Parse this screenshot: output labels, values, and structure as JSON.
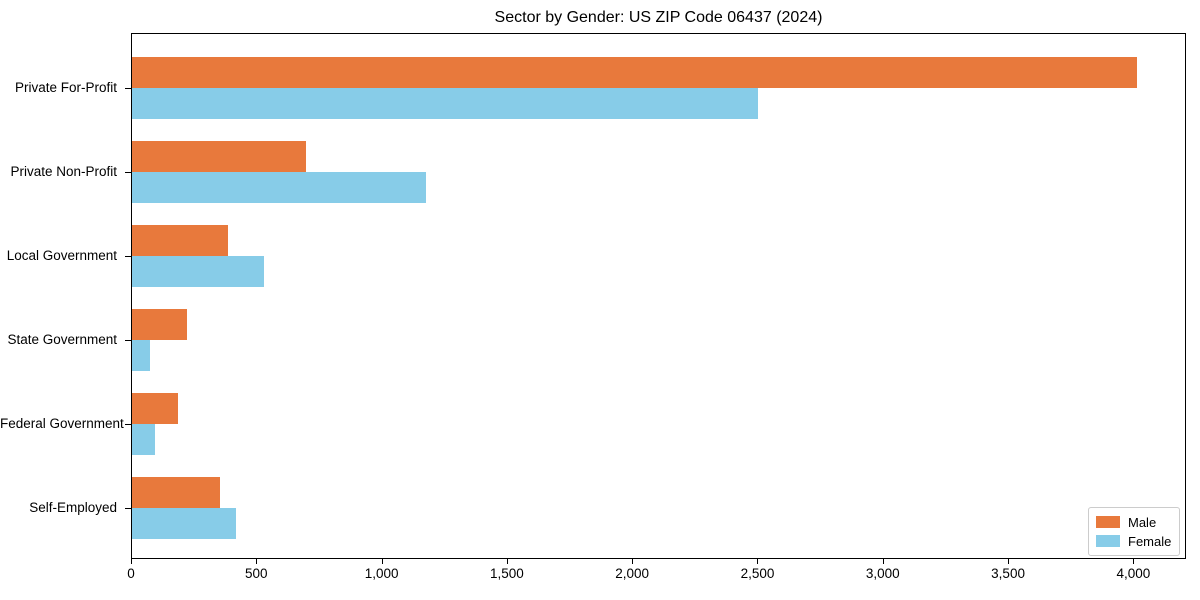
{
  "chart_data": {
    "type": "bar",
    "orientation": "horizontal",
    "title": "Sector by Gender: US ZIP Code 06437 (2024)",
    "categories": [
      "Private For-Profit",
      "Private Non-Profit",
      "Local Government",
      "State Government",
      "Federal Government",
      "Self-Employed"
    ],
    "series": [
      {
        "name": "Male",
        "color": "#E8793C",
        "values": [
          4010,
          695,
          385,
          220,
          185,
          350
        ]
      },
      {
        "name": "Female",
        "color": "#87CCE8",
        "values": [
          2500,
          1175,
          525,
          70,
          90,
          415
        ]
      }
    ],
    "xlabel": "",
    "ylabel": "",
    "xlim": [
      0,
      4210
    ],
    "xticks": [
      0,
      500,
      1000,
      1500,
      2000,
      2500,
      3000,
      3500,
      4000
    ],
    "xtick_labels": [
      "0",
      "500",
      "1,000",
      "1,500",
      "2,000",
      "2,500",
      "3,000",
      "3,500",
      "4,000"
    ],
    "grid": false,
    "legend_position": "lower right",
    "background_color": "#FFFFFF",
    "axis_color": "#000000"
  }
}
